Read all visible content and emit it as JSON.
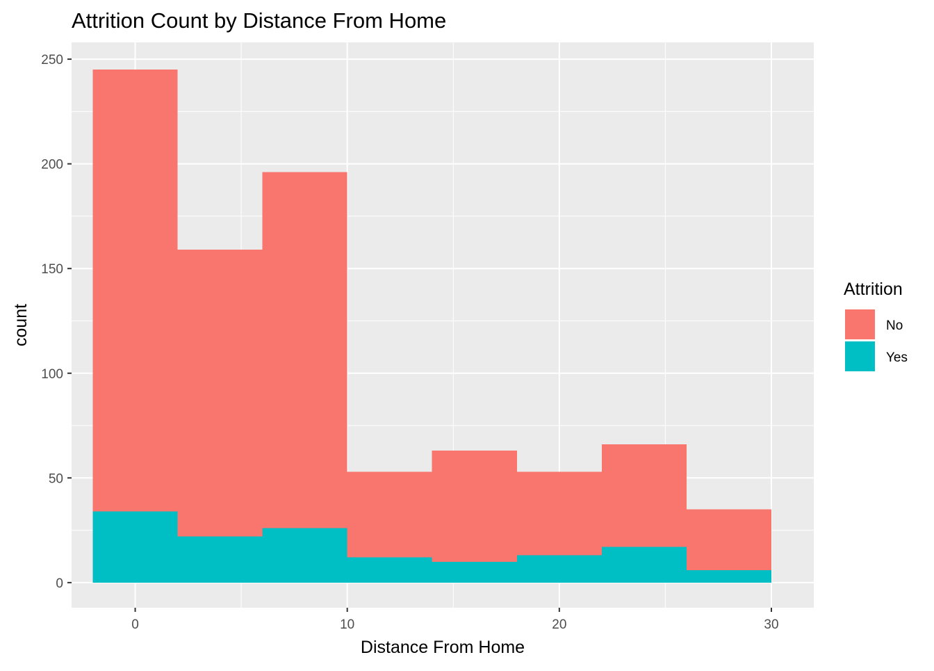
{
  "chart_data": {
    "type": "bar",
    "subtype": "stacked-histogram",
    "title": "Attrition Count by Distance From Home",
    "xlabel": "Distance From Home",
    "ylabel": "count",
    "xlim": [
      -3,
      32
    ],
    "ylim": [
      -12,
      258
    ],
    "x_ticks": [
      0,
      10,
      20,
      30
    ],
    "y_ticks": [
      0,
      50,
      100,
      150,
      200,
      250
    ],
    "grid": true,
    "legend": {
      "title": "Attrition",
      "position": "right",
      "entries": [
        {
          "label": "No",
          "color": "#F8766D"
        },
        {
          "label": "Yes",
          "color": "#00BFC4"
        }
      ]
    },
    "bins": [
      {
        "x0": -2,
        "x1": 2
      },
      {
        "x0": 2,
        "x1": 6
      },
      {
        "x0": 6,
        "x1": 10
      },
      {
        "x0": 10,
        "x1": 14
      },
      {
        "x0": 14,
        "x1": 18
      },
      {
        "x0": 18,
        "x1": 22
      },
      {
        "x0": 22,
        "x1": 26
      },
      {
        "x0": 26,
        "x1": 30
      }
    ],
    "series": [
      {
        "name": "No",
        "color": "#F8766D",
        "values": [
          211,
          137,
          170,
          41,
          53,
          40,
          49,
          29
        ]
      },
      {
        "name": "Yes",
        "color": "#00BFC4",
        "values": [
          34,
          22,
          26,
          12,
          10,
          13,
          17,
          6
        ]
      }
    ]
  }
}
